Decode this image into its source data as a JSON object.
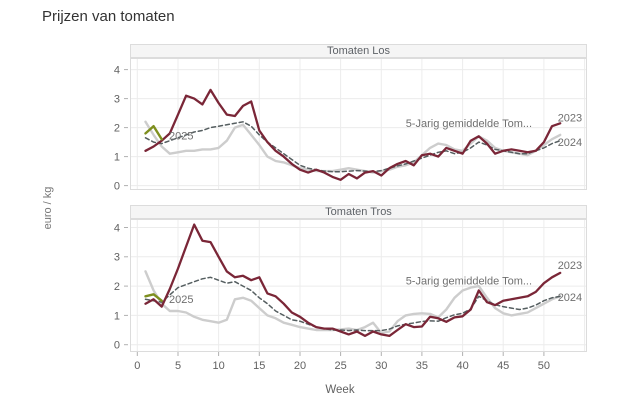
{
  "title": "Prijzen van tomaten",
  "xlabel": "Week",
  "ylabel": "euro / kg",
  "colors": {
    "line_2023": "#7a2637",
    "line_2024": "#cdcdcd",
    "line_5yr": "#555e60",
    "line_2025": "#7e8f1e",
    "grid": "#ececec",
    "panel_border": "#dcdcdc",
    "tick": "#b0b0b0",
    "axis_text": "#616161",
    "annotation_text": "#6f6f6f",
    "header_bg": "#f5f5f5"
  },
  "chart_data": [
    {
      "type": "line",
      "panel_title": "Tomaten Los",
      "xlim": [
        -0.9,
        55.3
      ],
      "ylim": [
        -0.15,
        4.4
      ],
      "yticks": [
        0,
        1,
        2,
        3,
        4
      ],
      "xgrid": [
        0,
        5,
        10,
        15,
        20,
        25,
        30,
        35,
        40,
        45,
        50,
        55
      ],
      "x": [
        1,
        2,
        3,
        4,
        5,
        6,
        7,
        8,
        9,
        10,
        11,
        12,
        13,
        14,
        15,
        16,
        17,
        18,
        19,
        20,
        21,
        22,
        23,
        24,
        25,
        26,
        27,
        28,
        29,
        30,
        31,
        32,
        33,
        34,
        35,
        36,
        37,
        38,
        39,
        40,
        41,
        42,
        43,
        44,
        45,
        46,
        47,
        48,
        49,
        50,
        51,
        52
      ],
      "series": [
        {
          "name": "2024",
          "color": "#cdcdcd",
          "width": 2.4,
          "values": [
            2.2,
            1.75,
            1.35,
            1.1,
            1.15,
            1.2,
            1.2,
            1.25,
            1.25,
            1.3,
            1.55,
            2.0,
            2.1,
            1.75,
            1.4,
            1.0,
            0.85,
            0.8,
            0.7,
            0.6,
            0.55,
            0.5,
            0.5,
            0.5,
            0.55,
            0.6,
            0.55,
            0.5,
            0.45,
            0.5,
            0.55,
            0.65,
            0.7,
            0.8,
            1.05,
            1.3,
            1.45,
            1.4,
            1.25,
            1.2,
            1.45,
            1.7,
            1.55,
            1.3,
            1.2,
            1.15,
            1.1,
            1.05,
            1.2,
            1.4,
            1.6,
            1.75
          ]
        },
        {
          "name": "5-Jarig gemiddelde Tom...",
          "color": "#555e60",
          "width": 1.5,
          "dash": "4 3",
          "values": [
            1.65,
            1.5,
            1.45,
            1.55,
            1.65,
            1.75,
            1.85,
            1.9,
            2.0,
            2.05,
            2.1,
            2.15,
            2.2,
            2.05,
            1.75,
            1.5,
            1.3,
            1.1,
            0.9,
            0.7,
            0.6,
            0.55,
            0.5,
            0.48,
            0.48,
            0.5,
            0.52,
            0.5,
            0.48,
            0.52,
            0.6,
            0.68,
            0.75,
            0.85,
            0.95,
            1.05,
            1.15,
            1.2,
            1.1,
            1.15,
            1.3,
            1.5,
            1.4,
            1.25,
            1.2,
            1.15,
            1.1,
            1.1,
            1.2,
            1.3,
            1.45,
            1.55
          ]
        },
        {
          "name": "2023",
          "color": "#7a2637",
          "width": 2.3,
          "values": [
            1.2,
            1.35,
            1.55,
            1.8,
            2.45,
            3.1,
            3.0,
            2.8,
            3.3,
            2.85,
            2.45,
            2.4,
            2.75,
            2.9,
            1.9,
            1.5,
            1.2,
            1.0,
            0.75,
            0.55,
            0.45,
            0.55,
            0.45,
            0.3,
            0.2,
            0.4,
            0.25,
            0.45,
            0.5,
            0.35,
            0.6,
            0.75,
            0.85,
            0.7,
            1.05,
            1.1,
            1.0,
            1.3,
            1.2,
            1.1,
            1.55,
            1.7,
            1.45,
            1.1,
            1.2,
            1.25,
            1.2,
            1.15,
            1.2,
            1.5,
            2.05,
            2.15
          ]
        },
        {
          "name": "2025",
          "color": "#7e8f1e",
          "width": 2.4,
          "x": [
            1,
            2,
            3
          ],
          "values": [
            1.8,
            2.05,
            1.6
          ]
        }
      ],
      "annotations": [
        {
          "text": "2025",
          "week": 3.9,
          "value": 1.73
        },
        {
          "text": "5-Jarig gemiddelde Tom...",
          "week": 33,
          "value": 2.15
        },
        {
          "text": "2023",
          "week": 51.7,
          "value": 2.35
        },
        {
          "text": "2024",
          "week": 51.7,
          "value": 1.5
        }
      ]
    },
    {
      "type": "line",
      "panel_title": "Tomaten Tros",
      "xlim": [
        -0.9,
        55.3
      ],
      "ylim": [
        -0.25,
        4.29
      ],
      "yticks": [
        0,
        1,
        2,
        3,
        4
      ],
      "xgrid": [
        0,
        5,
        10,
        15,
        20,
        25,
        30,
        35,
        40,
        45,
        50,
        55
      ],
      "xticks": [
        0,
        5,
        10,
        15,
        20,
        25,
        30,
        35,
        40,
        45,
        50
      ],
      "x": [
        1,
        2,
        3,
        4,
        5,
        6,
        7,
        8,
        9,
        10,
        11,
        12,
        13,
        14,
        15,
        16,
        17,
        18,
        19,
        20,
        21,
        22,
        23,
        24,
        25,
        26,
        27,
        28,
        29,
        30,
        31,
        32,
        33,
        34,
        35,
        36,
        37,
        38,
        39,
        40,
        41,
        42,
        43,
        44,
        45,
        46,
        47,
        48,
        49,
        50,
        51,
        52
      ],
      "series": [
        {
          "name": "2024",
          "color": "#cdcdcd",
          "width": 2.4,
          "values": [
            2.5,
            1.85,
            1.4,
            1.15,
            1.15,
            1.1,
            0.95,
            0.85,
            0.8,
            0.75,
            0.85,
            1.55,
            1.6,
            1.5,
            1.25,
            1.0,
            0.9,
            0.75,
            0.68,
            0.6,
            0.55,
            0.5,
            0.5,
            0.5,
            0.52,
            0.55,
            0.5,
            0.6,
            0.75,
            0.4,
            0.45,
            0.8,
            1.0,
            1.05,
            1.07,
            1.05,
            0.93,
            1.2,
            1.6,
            1.85,
            1.95,
            2.0,
            1.6,
            1.25,
            1.07,
            1.0,
            1.05,
            1.1,
            1.25,
            1.4,
            1.55,
            1.65
          ]
        },
        {
          "name": "5-Jarig gemiddelde Tom...",
          "color": "#555e60",
          "width": 1.5,
          "dash": "4 3",
          "values": [
            1.55,
            1.5,
            1.45,
            1.7,
            1.95,
            2.05,
            2.15,
            2.25,
            2.3,
            2.2,
            2.1,
            2.15,
            2.0,
            1.85,
            1.6,
            1.4,
            1.15,
            1.0,
            0.85,
            0.8,
            0.7,
            0.6,
            0.55,
            0.5,
            0.5,
            0.48,
            0.5,
            0.48,
            0.48,
            0.48,
            0.53,
            0.64,
            0.7,
            0.74,
            0.79,
            0.81,
            0.8,
            0.92,
            1.02,
            1.07,
            1.22,
            1.65,
            1.5,
            1.36,
            1.3,
            1.25,
            1.2,
            1.25,
            1.35,
            1.5,
            1.6,
            1.65
          ]
        },
        {
          "name": "2023",
          "color": "#7a2637",
          "width": 2.3,
          "values": [
            1.4,
            1.55,
            1.3,
            1.9,
            2.6,
            3.35,
            4.1,
            3.55,
            3.5,
            3.0,
            2.5,
            2.3,
            2.35,
            2.2,
            2.3,
            1.75,
            1.65,
            1.4,
            1.1,
            0.95,
            0.75,
            0.6,
            0.55,
            0.55,
            0.45,
            0.35,
            0.45,
            0.3,
            0.45,
            0.35,
            0.3,
            0.5,
            0.7,
            0.6,
            0.62,
            0.95,
            0.9,
            0.78,
            0.93,
            0.97,
            1.2,
            1.85,
            1.45,
            1.35,
            1.5,
            1.55,
            1.6,
            1.65,
            1.8,
            2.1,
            2.3,
            2.45
          ]
        },
        {
          "name": "2025",
          "color": "#7e8f1e",
          "width": 2.4,
          "x": [
            1,
            2,
            3
          ],
          "values": [
            1.65,
            1.72,
            1.5
          ]
        }
      ],
      "annotations": [
        {
          "text": "2025",
          "week": 3.9,
          "value": 1.55
        },
        {
          "text": "5-Jarig gemiddelde Tom...",
          "week": 33,
          "value": 2.18
        },
        {
          "text": "2023",
          "week": 51.7,
          "value": 2.72
        },
        {
          "text": "2024",
          "week": 51.7,
          "value": 1.62
        }
      ]
    }
  ]
}
